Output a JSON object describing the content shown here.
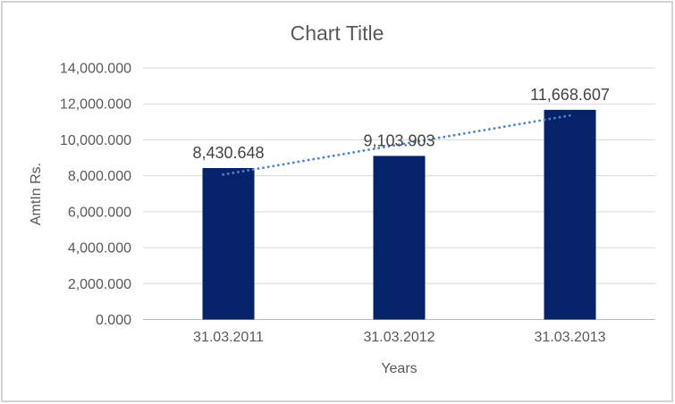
{
  "chart_data": {
    "type": "bar",
    "title": "Chart Title",
    "categories": [
      "31.03.2011",
      "31.03.2012",
      "31.03.2013"
    ],
    "values": [
      8430.648,
      9103.903,
      11668.607
    ],
    "data_labels": [
      "8,430.648",
      "9,103.903",
      "11,668.607"
    ],
    "xlabel": "Years",
    "ylabel": "AmtIn Rs.",
    "ylim": [
      0,
      14000
    ],
    "ytick_step": 2000,
    "ytick_labels": [
      "0.000",
      "2,000.000",
      "4,000.000",
      "6,000.000",
      "8,000.000",
      "10,000.000",
      "12,000.000",
      "14,000.000"
    ],
    "grid": "horizontal",
    "legend": "none",
    "trendline": {
      "type": "linear",
      "style": "dotted"
    }
  },
  "style": {
    "bar_color": "#062269",
    "trendline_color": "#4d86c6",
    "gridline_color": "#d9d9d9",
    "axis_line_color": "#bfbfbf",
    "text_color": "#595959",
    "data_label_color": "#444444",
    "border_color": "#d2d2d2",
    "background_color": "#ffffff"
  }
}
